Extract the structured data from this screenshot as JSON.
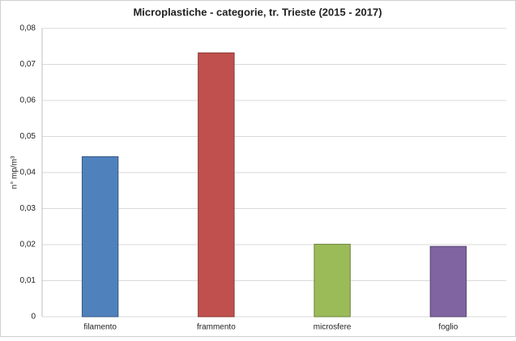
{
  "chart_data": {
    "type": "bar",
    "title": "Microplastiche - categorie, tr. Trieste (2015 - 2017)",
    "y_label": "n° mp/m³",
    "categories": [
      "filamento",
      "frammento",
      "microsfere",
      "foglio"
    ],
    "values": [
      0.0444,
      0.0732,
      0.0201,
      0.0195
    ],
    "colors": [
      "#4f81bd",
      "#c0504d",
      "#9bbb59",
      "#8064a2"
    ],
    "ylim": [
      0,
      0.08
    ],
    "yticks": [
      0,
      {
        "value": 0.01,
        "label": "0,01"
      },
      {
        "value": 0.02,
        "label": "0,02"
      },
      {
        "value": 0.03,
        "label": "0,03"
      },
      {
        "value": 0.04,
        "label": "0,04"
      },
      {
        "value": 0.05,
        "label": "0,05"
      },
      {
        "value": 0.06,
        "label": "0,06"
      },
      {
        "value": 0.07,
        "label": "0,07"
      },
      {
        "value": 0.08,
        "label": "0,08"
      }
    ],
    "grid": true
  }
}
